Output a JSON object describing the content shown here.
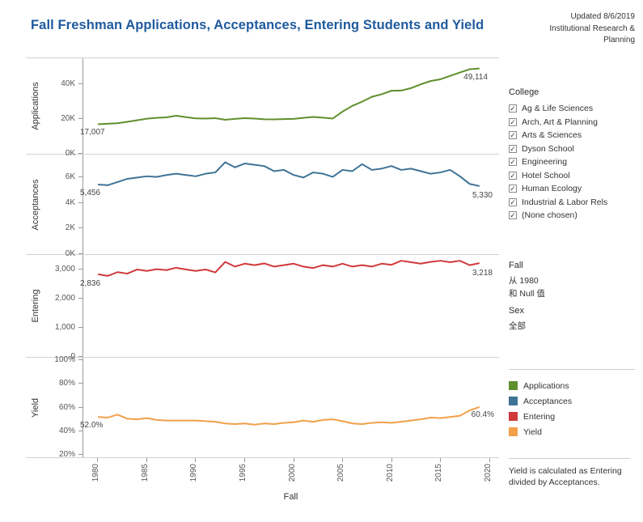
{
  "header": {
    "title": "Fall Freshman Applications, Acceptances, Entering Students and Yield",
    "updated_line1": "Updated 8/6/2019",
    "updated_line2": "Institutional Research &",
    "updated_line3": "Planning"
  },
  "x_axis": {
    "label": "Fall",
    "ticks": [
      "1980",
      "1985",
      "1990",
      "1995",
      "2000",
      "2005",
      "2010",
      "2015",
      "2020"
    ]
  },
  "filters": {
    "college": {
      "title": "College",
      "items": [
        {
          "label": "Ag & Life Sciences",
          "checked": true
        },
        {
          "label": "Arch, Art & Planning",
          "checked": true
        },
        {
          "label": "Arts & Sciences",
          "checked": true
        },
        {
          "label": "Dyson School",
          "checked": true
        },
        {
          "label": "Engineering",
          "checked": true
        },
        {
          "label": "Hotel School",
          "checked": true
        },
        {
          "label": "Human Ecology",
          "checked": true
        },
        {
          "label": "Industrial & Labor Rels",
          "checked": true
        },
        {
          "label": "(None chosen)",
          "checked": true
        }
      ]
    },
    "fall": {
      "title": "Fall",
      "lines": [
        "从 1980",
        "和 Null 值"
      ]
    },
    "sex": {
      "title": "Sex",
      "lines": [
        "全部"
      ]
    }
  },
  "legend": {
    "items": [
      {
        "label": "Applications",
        "color": "#5f8f2c"
      },
      {
        "label": "Acceptances",
        "color": "#3f7396"
      },
      {
        "label": "Entering",
        "color": "#d0393b"
      },
      {
        "label": "Yield",
        "color": "#f2a04a"
      }
    ]
  },
  "note": "Yield is calculated as Entering divided by Acceptances.",
  "chart_data": [
    {
      "type": "line",
      "name": "Applications",
      "ylabel": "Applications",
      "color": "#5f8f2c",
      "xlim": [
        1978.5,
        2021
      ],
      "ylim": [
        0,
        55000
      ],
      "yticks": [
        {
          "v": 0,
          "label": "0K"
        },
        {
          "v": 20000,
          "label": "20K"
        },
        {
          "v": 40000,
          "label": "40K"
        }
      ],
      "x": [
        1980,
        1981,
        1982,
        1983,
        1984,
        1985,
        1986,
        1987,
        1988,
        1989,
        1990,
        1991,
        1992,
        1993,
        1994,
        1995,
        1996,
        1997,
        1998,
        1999,
        2000,
        2001,
        2002,
        2003,
        2004,
        2005,
        2006,
        2007,
        2008,
        2009,
        2010,
        2011,
        2012,
        2013,
        2014,
        2015,
        2016,
        2017,
        2018,
        2019
      ],
      "values": [
        17007,
        17300,
        17600,
        18400,
        19300,
        20200,
        20700,
        21000,
        21900,
        21100,
        20400,
        20300,
        20500,
        19600,
        20100,
        20500,
        20300,
        19900,
        19800,
        20000,
        20100,
        20700,
        21200,
        20800,
        20300,
        24300,
        27600,
        30000,
        32800,
        34300,
        36300,
        36400,
        37800,
        40000,
        41900,
        42900,
        44900,
        46800,
        48700,
        49114
      ],
      "start_label": "17,007",
      "end_label": "49,114"
    },
    {
      "type": "line",
      "name": "Acceptances",
      "ylabel": "Acceptances",
      "color": "#3f7396",
      "xlim": [
        1978.5,
        2021
      ],
      "ylim": [
        0,
        7800
      ],
      "yticks": [
        {
          "v": 0,
          "label": "0K"
        },
        {
          "v": 2000,
          "label": "2K"
        },
        {
          "v": 4000,
          "label": "4K"
        },
        {
          "v": 6000,
          "label": "6K"
        }
      ],
      "x": [
        1980,
        1981,
        1982,
        1983,
        1984,
        1985,
        1986,
        1987,
        1988,
        1989,
        1990,
        1991,
        1992,
        1993,
        1994,
        1995,
        1996,
        1997,
        1998,
        1999,
        2000,
        2001,
        2002,
        2003,
        2004,
        2005,
        2006,
        2007,
        2008,
        2009,
        2010,
        2011,
        2012,
        2013,
        2014,
        2015,
        2016,
        2017,
        2018,
        2019
      ],
      "values": [
        5456,
        5400,
        5650,
        5900,
        6000,
        6100,
        6050,
        6200,
        6300,
        6200,
        6100,
        6300,
        6400,
        7200,
        6800,
        7100,
        7000,
        6900,
        6500,
        6600,
        6200,
        6000,
        6400,
        6300,
        6050,
        6600,
        6500,
        7050,
        6600,
        6700,
        6900,
        6600,
        6700,
        6500,
        6300,
        6400,
        6600,
        6100,
        5500,
        5330
      ],
      "start_label": "5,456",
      "end_label": "5,330"
    },
    {
      "type": "line",
      "name": "Entering",
      "ylabel": "Entering",
      "color": "#d0393b",
      "xlim": [
        1978.5,
        2021
      ],
      "ylim": [
        0,
        3500
      ],
      "yticks": [
        {
          "v": 0,
          "label": "0"
        },
        {
          "v": 1000,
          "label": "1,000"
        },
        {
          "v": 2000,
          "label": "2,000"
        },
        {
          "v": 3000,
          "label": "3,000"
        }
      ],
      "x": [
        1980,
        1981,
        1982,
        1983,
        1984,
        1985,
        1986,
        1987,
        1988,
        1989,
        1990,
        1991,
        1992,
        1993,
        1994,
        1995,
        1996,
        1997,
        1998,
        1999,
        2000,
        2001,
        2002,
        2003,
        2004,
        2005,
        2006,
        2007,
        2008,
        2009,
        2010,
        2011,
        2012,
        2013,
        2014,
        2015,
        2016,
        2017,
        2018,
        2019
      ],
      "values": [
        2836,
        2780,
        2910,
        2860,
        3000,
        2950,
        3010,
        2980,
        3060,
        3000,
        2950,
        3000,
        2900,
        3260,
        3100,
        3200,
        3150,
        3210,
        3100,
        3150,
        3200,
        3100,
        3050,
        3150,
        3100,
        3200,
        3100,
        3150,
        3100,
        3200,
        3160,
        3300,
        3250,
        3200,
        3260,
        3300,
        3250,
        3300,
        3150,
        3218
      ],
      "start_label": "2,836",
      "end_label": "3,218"
    },
    {
      "type": "line",
      "name": "Yield",
      "ylabel": "Yield",
      "color": "#f2a04a",
      "xlim": [
        1978.5,
        2021
      ],
      "ylim": [
        18,
        102
      ],
      "yticks": [
        {
          "v": 20,
          "label": "20%"
        },
        {
          "v": 40,
          "label": "40%"
        },
        {
          "v": 60,
          "label": "60%"
        },
        {
          "v": 80,
          "label": "80%"
        },
        {
          "v": 100,
          "label": "100%"
        }
      ],
      "x": [
        1980,
        1981,
        1982,
        1983,
        1984,
        1985,
        1986,
        1987,
        1988,
        1989,
        1990,
        1991,
        1992,
        1993,
        1994,
        1995,
        1996,
        1997,
        1998,
        1999,
        2000,
        2001,
        2002,
        2003,
        2004,
        2005,
        2006,
        2007,
        2008,
        2009,
        2010,
        2011,
        2012,
        2013,
        2014,
        2015,
        2016,
        2017,
        2018,
        2019
      ],
      "values": [
        52.0,
        51.5,
        54.0,
        50.5,
        50.0,
        51.0,
        49.5,
        49.0,
        49.0,
        49.0,
        49.0,
        48.5,
        48.0,
        46.5,
        46.0,
        46.5,
        45.5,
        46.5,
        46.0,
        47.0,
        47.5,
        49.0,
        48.0,
        49.5,
        50.0,
        48.5,
        46.5,
        46.0,
        47.0,
        47.5,
        47.0,
        48.0,
        49.0,
        50.0,
        51.5,
        51.0,
        52.0,
        53.0,
        57.5,
        60.4
      ],
      "start_label": "52.0%",
      "end_label": "60.4%"
    }
  ]
}
